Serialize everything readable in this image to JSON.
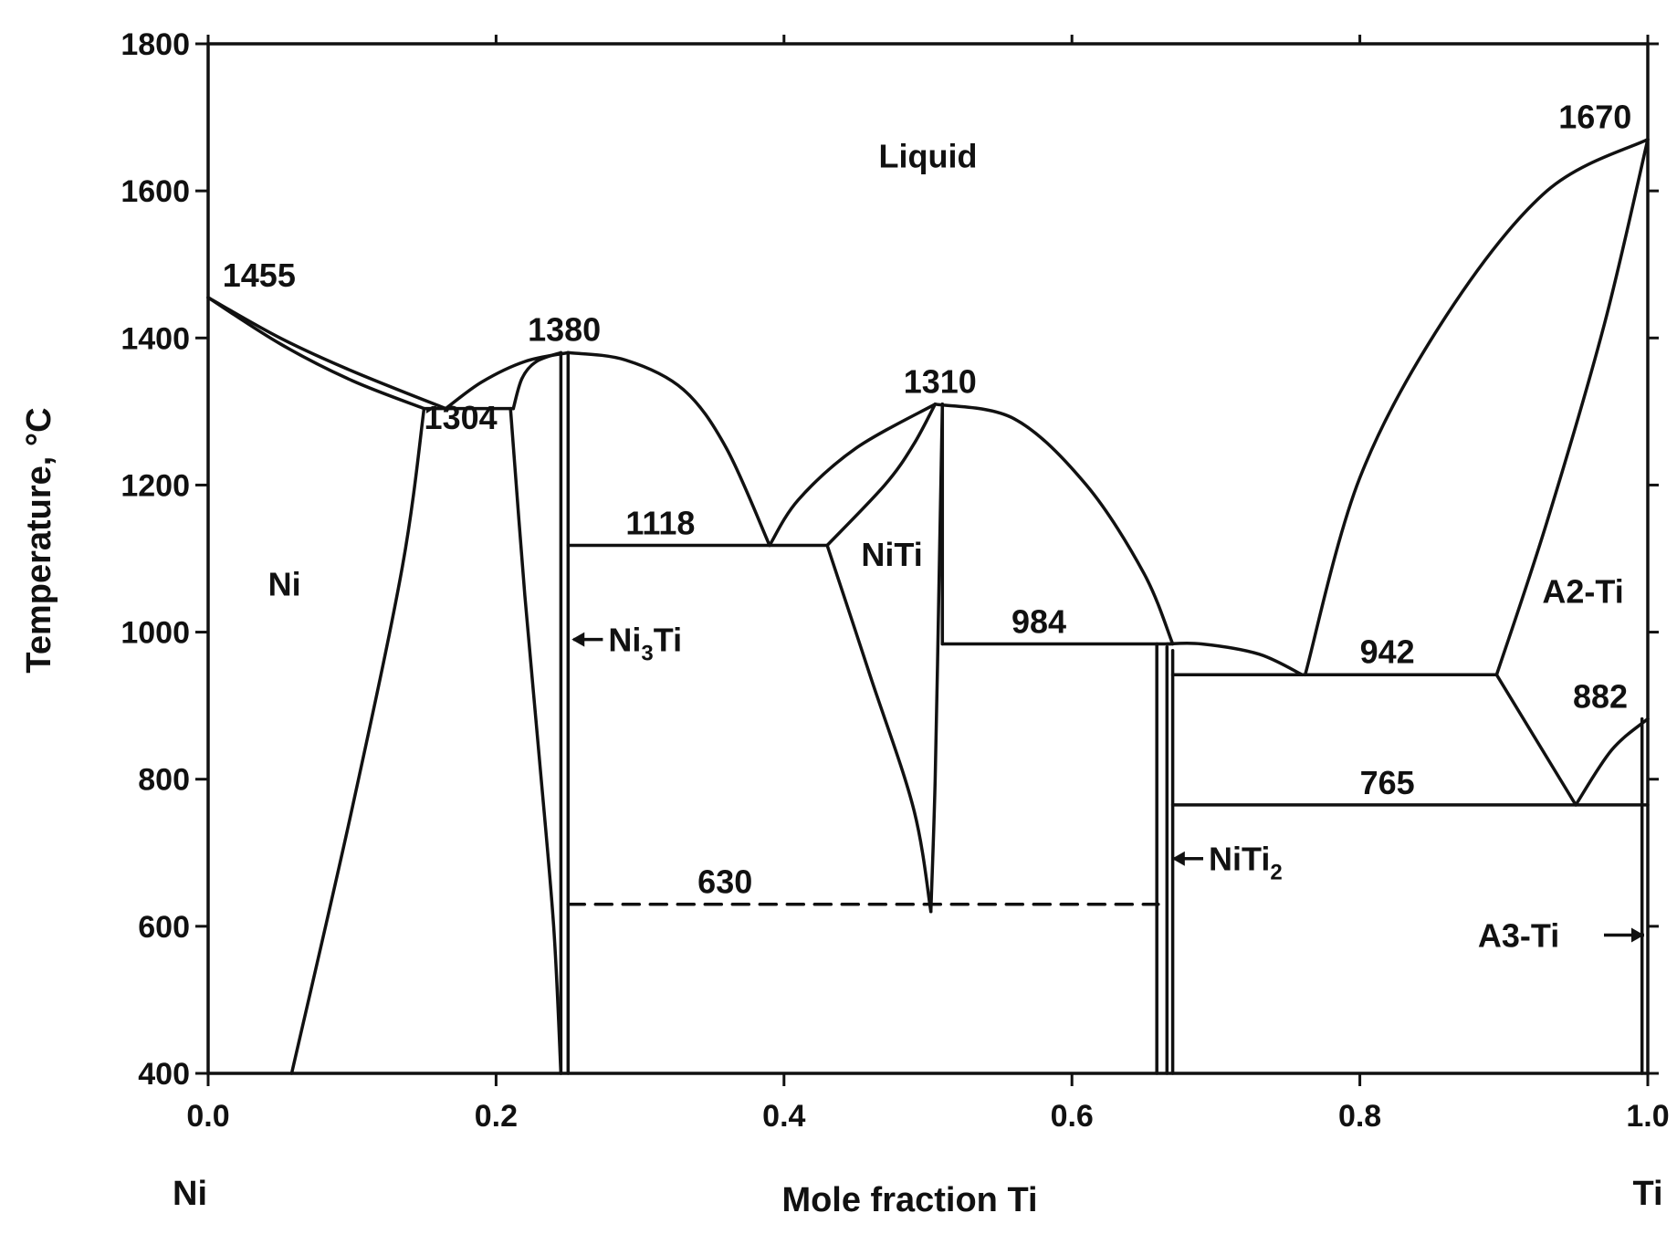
{
  "chart_data": {
    "type": "line",
    "title": "",
    "xlabel": "Mole fraction Ti",
    "ylabel": "Temperature, °C",
    "xlim": [
      0.0,
      1.0
    ],
    "ylim": [
      400,
      1800
    ],
    "x_ticks": [
      "0.0",
      "0.2",
      "0.4",
      "0.6",
      "0.8",
      "1.0"
    ],
    "y_ticks": [
      "400",
      "600",
      "800",
      "1000",
      "1200",
      "1400",
      "1600",
      "1800"
    ],
    "x_end_labels": {
      "left": "Ni",
      "right": "Ti"
    },
    "grid": false,
    "phase_labels": [
      {
        "text": "Liquid",
        "x": 0.5,
        "y": 1632
      },
      {
        "text": "Ni",
        "x": 0.053,
        "y": 1050
      },
      {
        "text": "NiTi",
        "x": 0.475,
        "y": 1090
      },
      {
        "text": "A2-Ti",
        "x": 0.955,
        "y": 1040
      }
    ],
    "arrow_labels": [
      {
        "base": "Ni",
        "sub": "3",
        "tail": "Ti",
        "x": 0.25,
        "y": 990,
        "text_x": 0.278
      },
      {
        "base": "NiTi",
        "sub": "2",
        "tail": "",
        "x": 0.667,
        "y": 692,
        "text_x": 0.695
      },
      {
        "base": "A3-Ti",
        "sub": "",
        "tail": "",
        "x": 1.0,
        "y": 588,
        "text_x": 0.882,
        "arrow_right": true
      }
    ],
    "temperature_labels": [
      {
        "text": "1455",
        "x": 0.01,
        "y": 1470
      },
      {
        "text": "1304",
        "x": 0.15,
        "y": 1276
      },
      {
        "text": "1380",
        "x": 0.222,
        "y": 1396
      },
      {
        "text": "1118",
        "x": 0.29,
        "y": 1133
      },
      {
        "text": "1310",
        "x": 0.483,
        "y": 1325
      },
      {
        "text": "984",
        "x": 0.558,
        "y": 999
      },
      {
        "text": "942",
        "x": 0.8,
        "y": 958
      },
      {
        "text": "765",
        "x": 0.8,
        "y": 780
      },
      {
        "text": "630",
        "x": 0.34,
        "y": 645
      },
      {
        "text": "1670",
        "x": 0.938,
        "y": 1685
      },
      {
        "text": "882",
        "x": 0.948,
        "y": 897
      }
    ],
    "series": [
      {
        "style": "solid",
        "points": [
          [
            0.0,
            1455
          ],
          [
            0.05,
            1400
          ],
          [
            0.1,
            1355
          ],
          [
            0.165,
            1304
          ]
        ]
      },
      {
        "style": "solid",
        "points": [
          [
            0.0,
            1455
          ],
          [
            0.05,
            1392
          ],
          [
            0.1,
            1342
          ],
          [
            0.15,
            1304
          ]
        ]
      },
      {
        "style": "solid",
        "points": [
          [
            0.15,
            1304
          ],
          [
            0.212,
            1304
          ]
        ]
      },
      {
        "style": "solid",
        "points": [
          [
            0.058,
            400
          ],
          [
            0.1,
            760
          ],
          [
            0.135,
            1090
          ],
          [
            0.15,
            1304
          ]
        ]
      },
      {
        "style": "solid",
        "points": [
          [
            0.165,
            1304
          ],
          [
            0.19,
            1340
          ],
          [
            0.22,
            1368
          ],
          [
            0.25,
            1380
          ]
        ]
      },
      {
        "style": "solid",
        "points": [
          [
            0.212,
            1304
          ],
          [
            0.218,
            1345
          ],
          [
            0.228,
            1368
          ],
          [
            0.245,
            1380
          ]
        ]
      },
      {
        "style": "solid",
        "points": [
          [
            0.21,
            1304
          ],
          [
            0.22,
            1050
          ],
          [
            0.23,
            830
          ],
          [
            0.24,
            600
          ],
          [
            0.245,
            400
          ]
        ]
      },
      {
        "style": "solid",
        "points": [
          [
            0.245,
            1380
          ],
          [
            0.245,
            400
          ]
        ]
      },
      {
        "style": "solid",
        "points": [
          [
            0.25,
            1380
          ],
          [
            0.25,
            400
          ]
        ]
      },
      {
        "style": "solid",
        "points": [
          [
            0.25,
            1380
          ],
          [
            0.29,
            1370
          ],
          [
            0.33,
            1330
          ],
          [
            0.36,
            1250
          ],
          [
            0.39,
            1118
          ]
        ]
      },
      {
        "style": "solid",
        "points": [
          [
            0.39,
            1118
          ],
          [
            0.41,
            1180
          ],
          [
            0.45,
            1250
          ],
          [
            0.505,
            1310
          ]
        ]
      },
      {
        "style": "solid",
        "points": [
          [
            0.43,
            1118
          ],
          [
            0.47,
            1200
          ],
          [
            0.49,
            1255
          ],
          [
            0.505,
            1310
          ]
        ]
      },
      {
        "style": "solid",
        "points": [
          [
            0.25,
            1118
          ],
          [
            0.43,
            1118
          ]
        ]
      },
      {
        "style": "solid",
        "points": [
          [
            0.43,
            1118
          ],
          [
            0.46,
            940
          ],
          [
            0.49,
            760
          ],
          [
            0.502,
            620
          ]
        ]
      },
      {
        "style": "solid",
        "points": [
          [
            0.502,
            620
          ],
          [
            0.505,
            800
          ],
          [
            0.508,
            1100
          ],
          [
            0.51,
            1310
          ]
        ]
      },
      {
        "style": "solid",
        "points": [
          [
            0.51,
            1310
          ],
          [
            0.51,
            984
          ]
        ]
      },
      {
        "style": "solid",
        "points": [
          [
            0.505,
            1310
          ],
          [
            0.56,
            1290
          ],
          [
            0.61,
            1200
          ],
          [
            0.65,
            1080
          ],
          [
            0.67,
            984
          ]
        ]
      },
      {
        "style": "solid",
        "points": [
          [
            0.51,
            984
          ],
          [
            0.67,
            984
          ]
        ]
      },
      {
        "style": "dashed",
        "points": [
          [
            0.25,
            630
          ],
          [
            0.66,
            630
          ]
        ]
      },
      {
        "style": "solid",
        "points": [
          [
            0.659,
            984
          ],
          [
            0.659,
            400
          ]
        ]
      },
      {
        "style": "solid",
        "points": [
          [
            0.666,
            980
          ],
          [
            0.666,
            400
          ]
        ]
      },
      {
        "style": "solid",
        "points": [
          [
            0.67,
            975
          ],
          [
            0.67,
            400
          ]
        ]
      },
      {
        "style": "solid",
        "points": [
          [
            0.666,
            984
          ],
          [
            0.69,
            984
          ],
          [
            0.73,
            970
          ],
          [
            0.76,
            942
          ]
        ]
      },
      {
        "style": "solid",
        "points": [
          [
            0.67,
            942
          ],
          [
            0.895,
            942
          ]
        ]
      },
      {
        "style": "solid",
        "points": [
          [
            0.762,
            942
          ],
          [
            0.8,
            1210
          ],
          [
            0.86,
            1430
          ],
          [
            0.93,
            1600
          ],
          [
            1.0,
            1670
          ]
        ]
      },
      {
        "style": "solid",
        "points": [
          [
            0.895,
            942
          ],
          [
            0.93,
            1150
          ],
          [
            0.97,
            1420
          ],
          [
            1.0,
            1670
          ]
        ]
      },
      {
        "style": "solid",
        "points": [
          [
            0.895,
            942
          ],
          [
            0.95,
            765
          ]
        ]
      },
      {
        "style": "solid",
        "points": [
          [
            0.95,
            765
          ],
          [
            0.975,
            840
          ],
          [
            1.0,
            882
          ]
        ]
      },
      {
        "style": "solid",
        "points": [
          [
            0.67,
            765
          ],
          [
            1.0,
            765
          ]
        ]
      },
      {
        "style": "solid",
        "points": [
          [
            0.996,
            882
          ],
          [
            0.996,
            400
          ]
        ]
      }
    ]
  }
}
